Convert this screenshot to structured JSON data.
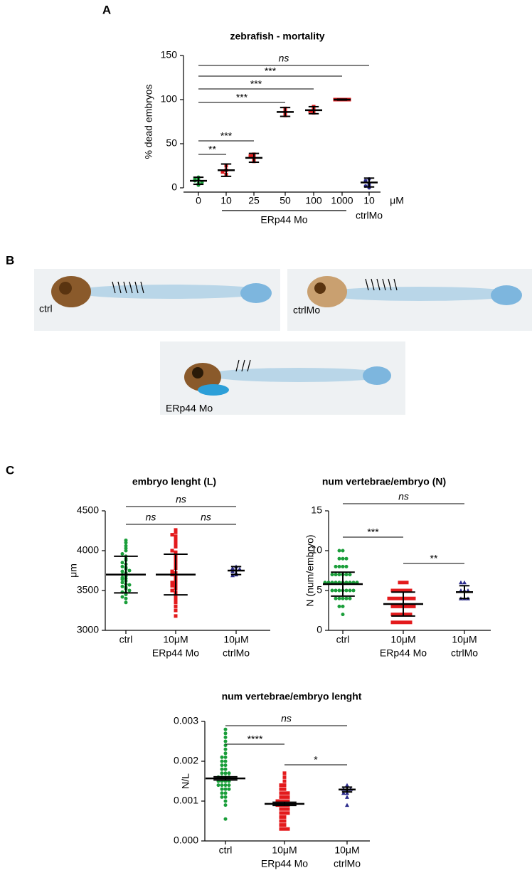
{
  "figure": {
    "panel_labels": [
      "A",
      "B",
      "C"
    ],
    "image_labels": [
      "ctrl",
      "ctrlMo",
      "ERp44 Mo"
    ]
  },
  "chart_data": [
    {
      "type": "strip",
      "title": "zebrafish - mortality",
      "y_label": "% dead embryos",
      "categories": [
        "0",
        "10",
        "25",
        "50",
        "100",
        "1000",
        "10"
      ],
      "unit": "μM",
      "group_labels": [
        "ERp44  Mo",
        "ctrlMo"
      ],
      "ylim": [
        0,
        150
      ],
      "yticks": [
        0,
        50,
        100,
        150
      ],
      "groups": [
        {
          "color": "#1a9e3a",
          "marker": "circle",
          "mean": 8,
          "error": 4,
          "points": [
            5,
            8,
            10,
            12,
            6,
            3,
            10
          ]
        },
        {
          "color": "#e31a1c",
          "marker": "square",
          "mean": 20,
          "error": 7,
          "points": [
            15,
            20,
            25,
            18
          ]
        },
        {
          "color": "#e31a1c",
          "marker": "square",
          "mean": 34,
          "error": 5,
          "points": [
            30,
            35,
            38,
            32,
            36
          ]
        },
        {
          "color": "#e31a1c",
          "marker": "square",
          "mean": 86,
          "error": 5,
          "points": [
            82,
            86,
            90,
            85
          ]
        },
        {
          "color": "#e31a1c",
          "marker": "square",
          "mean": 88,
          "error": 4,
          "points": [
            85,
            88,
            90,
            87,
            92
          ]
        },
        {
          "color": "#e31a1c",
          "marker": "square",
          "mean": 100,
          "error": 0.5,
          "points": [
            100,
            100,
            100,
            100,
            100
          ]
        },
        {
          "color": "#2b2b8c",
          "marker": "circle",
          "mean": 6,
          "error": 5,
          "points": [
            0,
            3,
            5,
            8,
            10,
            2
          ]
        }
      ],
      "comparisons": [
        "ns",
        "***",
        "***",
        "***",
        "***",
        "**"
      ]
    },
    {
      "type": "strip",
      "title": "embryo lenght (L)",
      "y_label": "μm",
      "categories": [
        [
          "ctrl"
        ],
        [
          "10μM",
          "ERp44 Mo"
        ],
        [
          "10μM",
          "ctrlMo"
        ]
      ],
      "ylim": [
        3000,
        4500
      ],
      "yticks": [
        3000,
        3500,
        4000,
        4500
      ],
      "groups": [
        {
          "color": "#1a9e3a",
          "marker": "circle",
          "mean": 3700,
          "error": 230,
          "points": [
            3350,
            3400,
            3420,
            3450,
            3470,
            3480,
            3500,
            3520,
            3540,
            3550,
            3570,
            3580,
            3600,
            3620,
            3640,
            3650,
            3660,
            3680,
            3700,
            3720,
            3740,
            3750,
            3770,
            3790,
            3800,
            3830,
            3850,
            3880,
            3900,
            3930,
            3960,
            4000,
            4030,
            4060,
            4100,
            4130
          ]
        },
        {
          "color": "#e31a1c",
          "marker": "square",
          "mean": 3700,
          "error": 255,
          "points": [
            3180,
            3250,
            3300,
            3350,
            3380,
            3420,
            3450,
            3470,
            3500,
            3520,
            3540,
            3560,
            3580,
            3600,
            3620,
            3650,
            3680,
            3700,
            3720,
            3740,
            3780,
            3800,
            3830,
            3860,
            3900,
            3940,
            3980,
            4000,
            4050,
            4080,
            4110,
            4150,
            4180,
            4200,
            4230,
            4260
          ]
        },
        {
          "color": "#2b2b8c",
          "marker": "triangle",
          "mean": 3750,
          "error": 50,
          "points": [
            3700,
            3720,
            3760,
            3780,
            3800,
            3740,
            3690,
            3770
          ]
        }
      ],
      "comparisons": [
        "ns",
        "ns",
        "ns"
      ]
    },
    {
      "type": "strip",
      "title": "num vertebrae/embryo (N)",
      "y_label": "N (num/embryo)",
      "categories": [
        [
          "ctrl"
        ],
        [
          "10μM",
          "ERp44 Mo"
        ],
        [
          "10μM",
          "ctrlMo"
        ]
      ],
      "ylim": [
        0,
        15
      ],
      "yticks": [
        0,
        5,
        10,
        15
      ],
      "groups": [
        {
          "color": "#1a9e3a",
          "marker": "circle",
          "mean": 5.8,
          "error": 1.5,
          "points": [
            2,
            3,
            3,
            4,
            4,
            4,
            4,
            4,
            5,
            5,
            5,
            5,
            5,
            5,
            5,
            6,
            6,
            6,
            6,
            6,
            6,
            6,
            6,
            6,
            7,
            7,
            7,
            7,
            7,
            7,
            8,
            8,
            8,
            8,
            9,
            9,
            9,
            10,
            10,
            6
          ]
        },
        {
          "color": "#e31a1c",
          "marker": "square",
          "mean": 3.3,
          "error": 1.5,
          "points": [
            1,
            1,
            1,
            1,
            1,
            1,
            2,
            2,
            2,
            2,
            2,
            2,
            3,
            3,
            3,
            3,
            3,
            3,
            3,
            4,
            4,
            4,
            4,
            4,
            4,
            4,
            4,
            5,
            5,
            5,
            5,
            5,
            5,
            6,
            6,
            6
          ]
        },
        {
          "color": "#2b2b8c",
          "marker": "triangle",
          "mean": 4.8,
          "error": 0.8,
          "points": [
            4,
            4,
            5,
            5,
            5,
            6,
            6,
            4
          ]
        }
      ],
      "comparisons": [
        "ns",
        "***",
        "**"
      ]
    },
    {
      "type": "strip",
      "title": "num vertebrae/embryo lenght",
      "y_label": "N/L",
      "categories": [
        [
          "ctrl"
        ],
        [
          "10μM",
          "ERp44 Mo"
        ],
        [
          "10μM",
          "ctrlMo"
        ]
      ],
      "ylim": [
        0,
        0.003
      ],
      "yticks": [
        {
          "value": 0,
          "label": "0.000"
        },
        {
          "value": 0.001,
          "label": "0.001"
        },
        {
          "value": 0.002,
          "label": "0.002"
        },
        {
          "value": 0.003,
          "label": "0.003"
        }
      ],
      "groups": [
        {
          "color": "#1a9e3a",
          "marker": "circle",
          "mean": 0.00157,
          "error": 4e-05,
          "points": [
            0.00055,
            0.0009,
            0.001,
            0.0011,
            0.0011,
            0.0012,
            0.0012,
            0.0013,
            0.0013,
            0.0013,
            0.0014,
            0.0014,
            0.0014,
            0.0015,
            0.0015,
            0.0015,
            0.0015,
            0.0016,
            0.0016,
            0.0016,
            0.0017,
            0.0017,
            0.0017,
            0.0018,
            0.0018,
            0.0019,
            0.0019,
            0.002,
            0.002,
            0.0021,
            0.0021,
            0.0022,
            0.0023,
            0.0024,
            0.0025,
            0.0026,
            0.0027,
            0.0028,
            0.0014,
            0.0016
          ]
        },
        {
          "color": "#e31a1c",
          "marker": "square",
          "mean": 0.00093,
          "error": 4e-05,
          "points": [
            0.0003,
            0.0003,
            0.0003,
            0.0004,
            0.0004,
            0.0005,
            0.0005,
            0.0006,
            0.0006,
            0.0007,
            0.0007,
            0.0007,
            0.0008,
            0.0008,
            0.0008,
            0.0009,
            0.0009,
            0.0009,
            0.0009,
            0.001,
            0.001,
            0.001,
            0.001,
            0.0011,
            0.0011,
            0.0011,
            0.0012,
            0.0012,
            0.0012,
            0.0013,
            0.0013,
            0.0014,
            0.0014,
            0.0015,
            0.0016,
            0.0017
          ]
        },
        {
          "color": "#2b2b8c",
          "marker": "triangle",
          "mean": 0.00129,
          "error": 6e-05,
          "points": [
            0.0009,
            0.0011,
            0.0012,
            0.0013,
            0.0013,
            0.0014,
            0.0013,
            0.0012
          ]
        }
      ],
      "comparisons": [
        "ns",
        "****",
        "*"
      ]
    }
  ]
}
